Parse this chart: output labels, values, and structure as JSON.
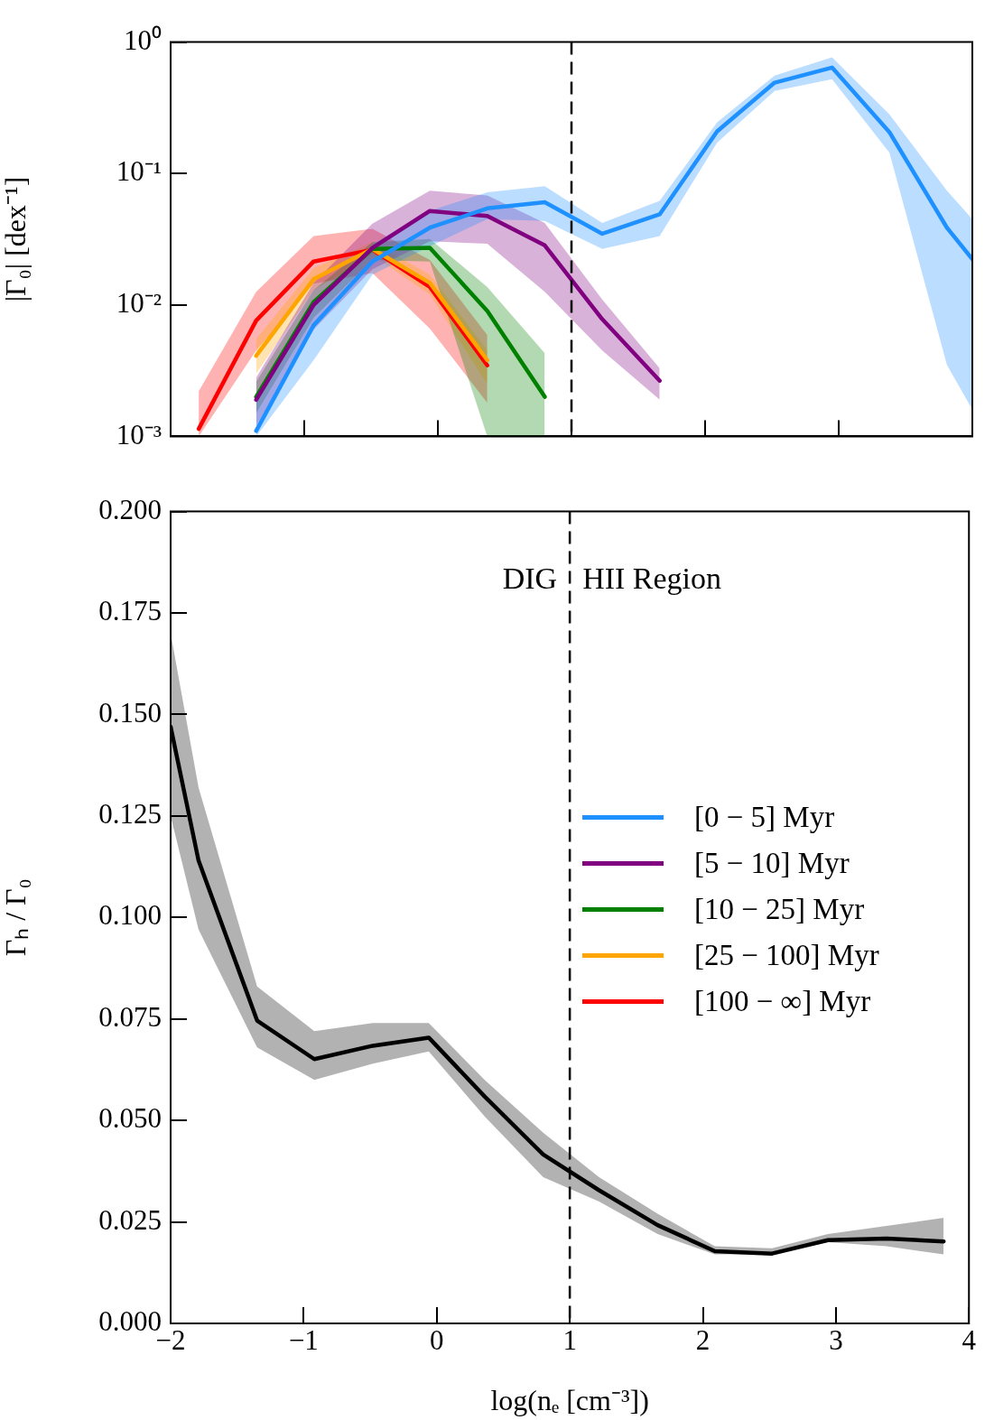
{
  "chart_data": [
    {
      "type": "line",
      "ylabel": "|Γ₀| [dex⁻¹]",
      "log": "y",
      "marker": "none",
      "legend": "right",
      "tick_labels": "y",
      "xlim": [
        -2,
        4
      ],
      "xticks": [
        -2,
        -1,
        0,
        1,
        2,
        3,
        4
      ],
      "ylim": [
        0.001,
        1
      ],
      "yticks": [
        {
          "value": 0.001,
          "label": "10⁻³"
        },
        {
          "value": 0.01,
          "label": "10⁻²"
        },
        {
          "value": 0.1,
          "label": "10⁻¹"
        },
        {
          "value": 1,
          "label": "10⁰"
        }
      ],
      "ref_lines": [
        {
          "axis": "x",
          "value": 1,
          "line_style": "dashed",
          "color": "#000000"
        }
      ],
      "x": [
        -1.79,
        -1.36,
        -0.93,
        -0.49,
        -0.06,
        0.37,
        0.8,
        1.23,
        1.66,
        2.09,
        2.52,
        2.95,
        3.38,
        3.81,
        4.0
      ],
      "series": [
        {
          "name": "[0 − 5] Myr",
          "color": "#1e90ff",
          "values": [
            null,
            0.0011,
            0.007,
            0.0214,
            0.0387,
            0.0543,
            0.0604,
            0.0348,
            0.0489,
            0.209,
            0.491,
            0.64,
            0.206,
            0.0387,
            0.0223
          ],
          "upper": [
            null,
            0.002,
            0.0096,
            0.029,
            0.052,
            0.072,
            0.08,
            0.042,
            0.062,
            0.245,
            0.556,
            0.766,
            0.281,
            0.074,
            0.045
          ],
          "lower": [
            null,
            0.001,
            0.0038,
            0.017,
            0.028,
            0.045,
            0.0435,
            0.0267,
            0.0334,
            0.172,
            0.425,
            0.522,
            0.144,
            0.0035,
            0.0016
          ]
        },
        {
          "name": "[5 − 10] Myr",
          "color": "#800080",
          "values": [
            null,
            0.0019,
            0.01,
            0.0272,
            0.0519,
            0.0475,
            0.0284,
            0.0078,
            0.00265,
            null,
            null,
            null,
            null,
            null,
            null
          ],
          "upper": [
            null,
            0.0028,
            0.0147,
            0.0416,
            0.074,
            0.068,
            0.042,
            0.011,
            0.0033,
            null,
            null,
            null,
            null,
            null,
            null
          ],
          "lower": [
            null,
            0.0012,
            0.0065,
            0.0187,
            0.0305,
            0.0292,
            0.0126,
            0.0045,
            0.0019,
            null,
            null,
            null,
            null,
            null,
            null
          ]
        },
        {
          "name": "[10 − 25] Myr",
          "color": "#008000",
          "values": [
            null,
            0.002,
            0.0105,
            0.0267,
            0.0272,
            0.009,
            0.002,
            null,
            null,
            null,
            null,
            null,
            null,
            null,
            null
          ],
          "upper": [
            null,
            0.0026,
            0.013,
            0.03,
            0.0318,
            0.0137,
            0.0043,
            null,
            null,
            null,
            null,
            null,
            null,
            null,
            null
          ],
          "lower": [
            null,
            0.0015,
            0.008,
            0.022,
            0.0214,
            0.001,
            0.001,
            null,
            null,
            null,
            null,
            null,
            null,
            null,
            null
          ]
        },
        {
          "name": "[25 − 100] Myr",
          "color": "#ffa500",
          "values": [
            null,
            0.0041,
            0.0157,
            0.0267,
            0.0147,
            0.0038,
            null,
            null,
            null,
            null,
            null,
            null,
            null,
            null,
            null
          ],
          "upper": [
            null,
            0.0055,
            0.019,
            0.03,
            0.017,
            0.0045,
            null,
            null,
            null,
            null,
            null,
            null,
            null,
            null,
            null
          ],
          "lower": [
            null,
            0.003,
            0.013,
            0.024,
            0.012,
            0.0025,
            null,
            null,
            null,
            null,
            null,
            null,
            null,
            null,
            null
          ]
        },
        {
          "name": "[100 − ∞] Myr",
          "color": "#ff0000",
          "values": [
            0.00114,
            0.0076,
            0.0214,
            0.0263,
            0.0137,
            0.00347,
            null,
            null,
            null,
            null,
            null,
            null,
            null,
            null,
            null
          ],
          "upper": [
            0.0022,
            0.0126,
            0.0334,
            0.038,
            0.022,
            0.0059,
            null,
            null,
            null,
            null,
            null,
            null,
            null,
            null,
            null
          ],
          "lower": [
            0.001,
            0.0045,
            0.0145,
            0.0175,
            0.0066,
            0.0018,
            null,
            null,
            null,
            null,
            null,
            null,
            null,
            null,
            null
          ]
        }
      ]
    },
    {
      "type": "line",
      "xlabel": "log(nₑ [cm⁻³])",
      "ylabel": "Γₕ / Γ₀",
      "marker": "none",
      "xlim": [
        -2,
        4
      ],
      "xticks": [
        {
          "value": -2,
          "label": "−2"
        },
        {
          "value": -1,
          "label": "−1"
        },
        0,
        1,
        2,
        3,
        4
      ],
      "ylim": [
        0,
        0.2
      ],
      "yticks": [
        {
          "value": 0,
          "label": "0.000"
        },
        {
          "value": 0.025,
          "label": "0.025"
        },
        {
          "value": 0.05,
          "label": "0.050"
        },
        {
          "value": 0.075,
          "label": "0.075"
        },
        {
          "value": 0.1,
          "label": "0.100"
        },
        {
          "value": 0.125,
          "label": "0.125"
        },
        {
          "value": 0.15,
          "label": "0.150"
        },
        {
          "value": 0.175,
          "label": "0.175"
        },
        {
          "value": 0.2,
          "label": "0.200"
        }
      ],
      "ref_lines": [
        {
          "axis": "x",
          "value": 1,
          "line_style": "dashed",
          "color": "#000000"
        }
      ],
      "annotations": [
        "DIG",
        "HII Region"
      ],
      "x": [
        -2.0,
        -1.79,
        -1.35,
        -0.92,
        -0.48,
        -0.06,
        0.36,
        0.8,
        1.22,
        1.66,
        2.09,
        2.52,
        2.94,
        3.38,
        3.81
      ],
      "series": [
        {
          "color": "#000000",
          "values": [
            0.147,
            0.114,
            0.0746,
            0.0651,
            0.0684,
            0.0704,
            0.0559,
            0.0416,
            0.0328,
            0.0242,
            0.0178,
            0.0172,
            0.0205,
            0.0209,
            0.0202
          ],
          "upper": [
            0.17,
            0.132,
            0.083,
            0.072,
            0.074,
            0.074,
            0.06,
            0.047,
            0.036,
            0.027,
            0.019,
            0.0185,
            0.022,
            0.024,
            0.026
          ],
          "lower": [
            0.125,
            0.097,
            0.068,
            0.06,
            0.064,
            0.067,
            0.051,
            0.036,
            0.03,
            0.022,
            0.017,
            0.017,
            0.02,
            0.019,
            0.017
          ]
        }
      ]
    }
  ]
}
